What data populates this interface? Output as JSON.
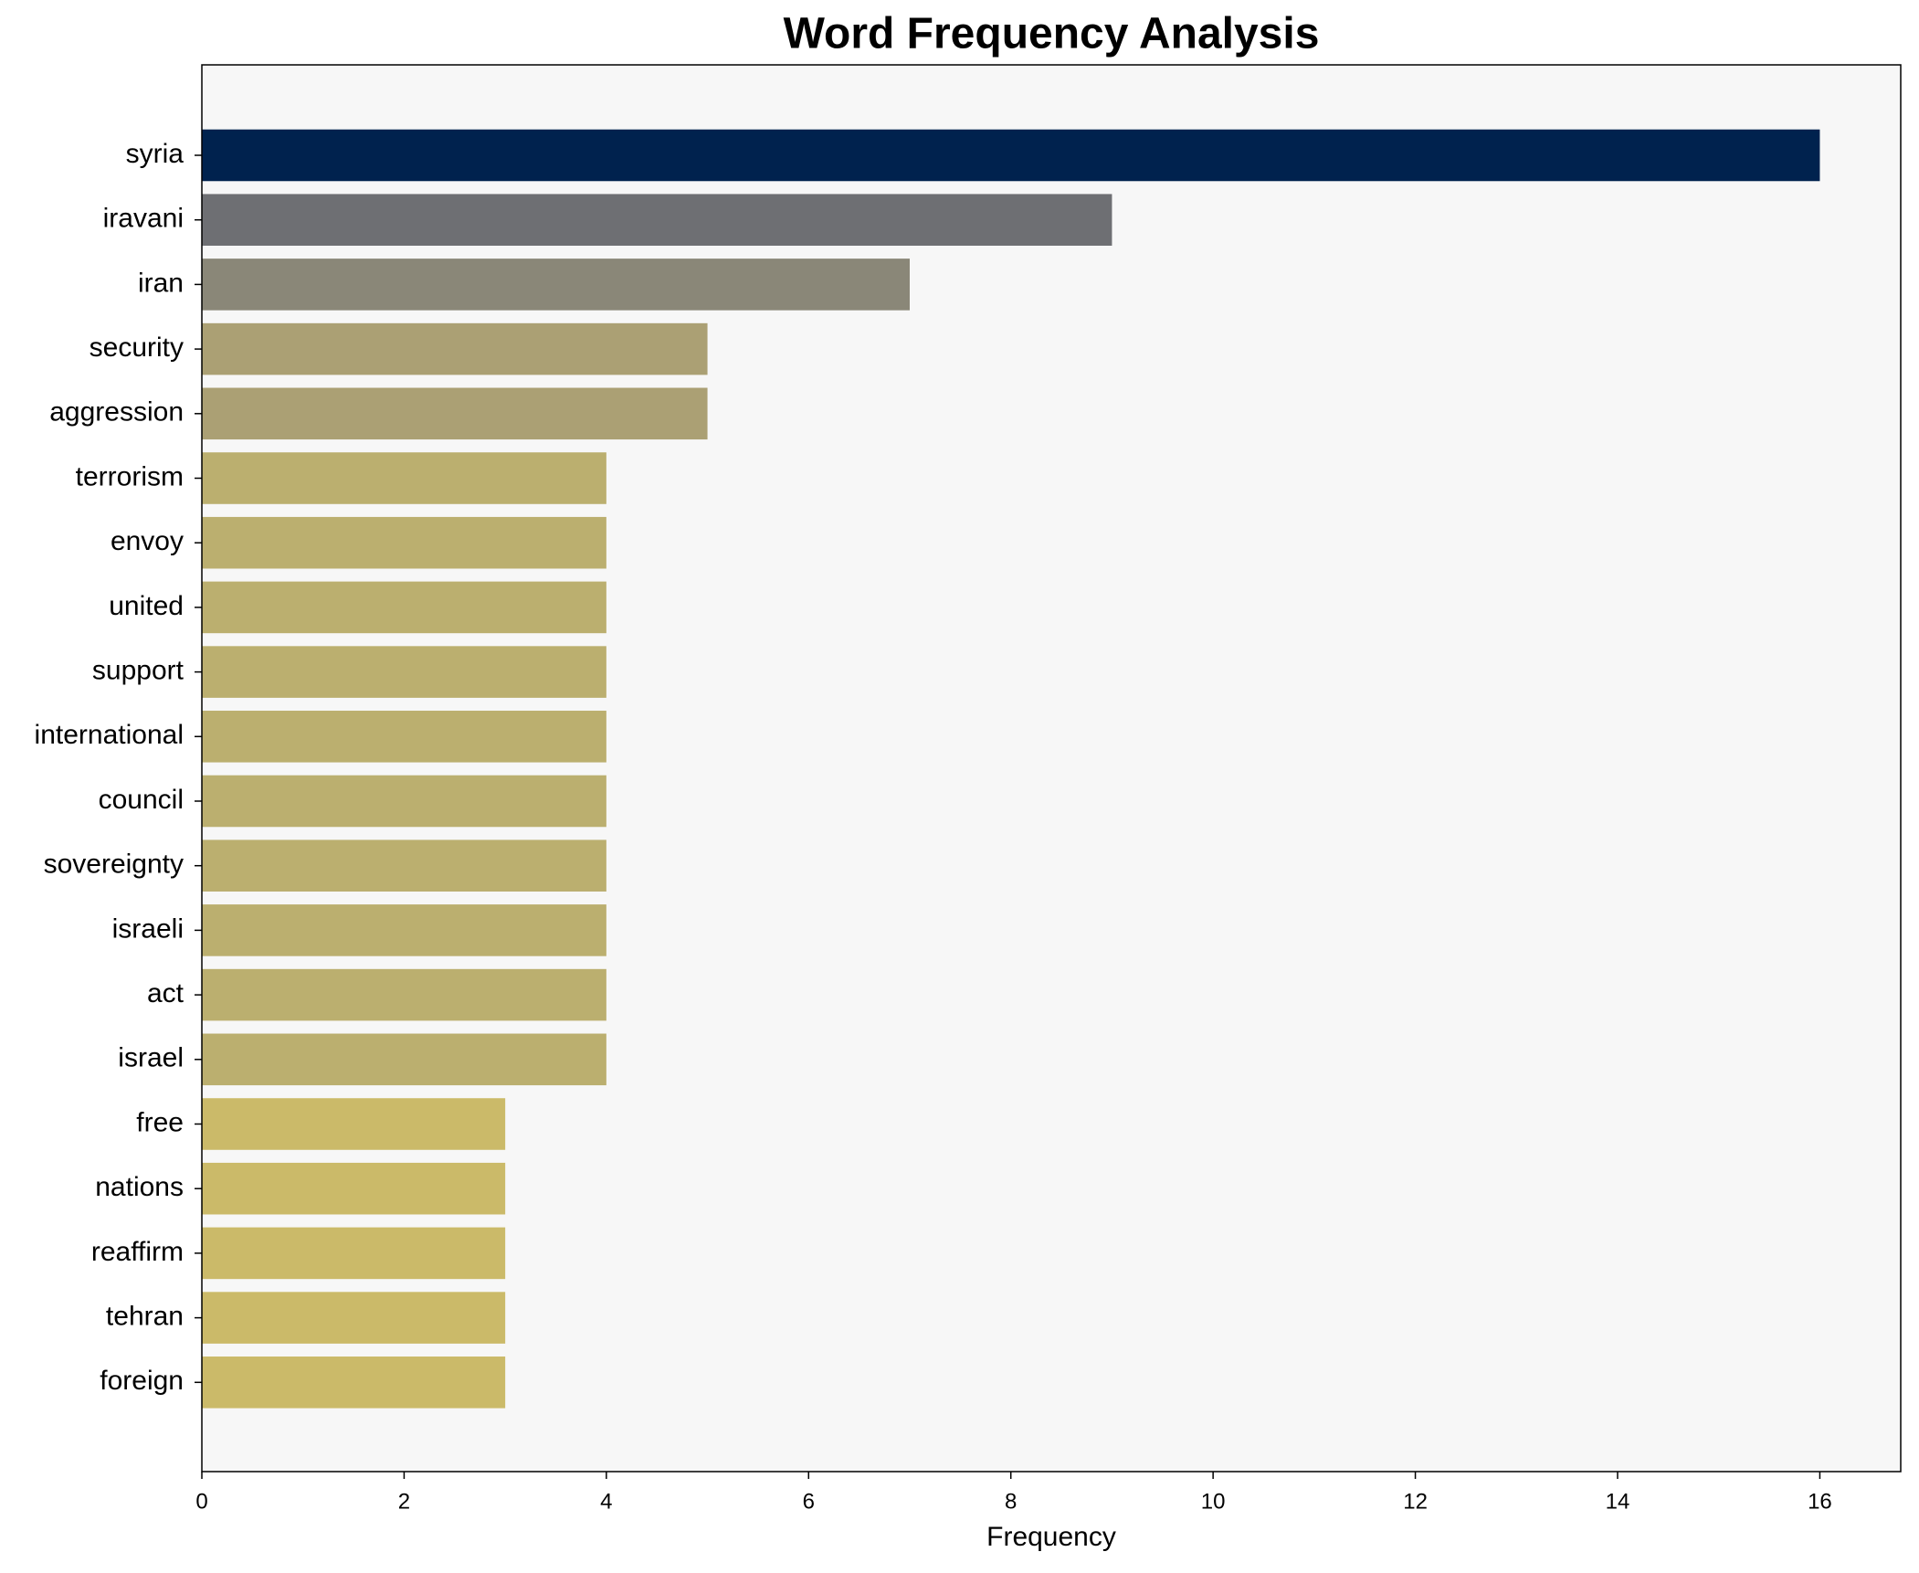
{
  "chart_data": {
    "type": "bar",
    "orientation": "horizontal",
    "title": "Word Frequency Analysis",
    "x_label": "Frequency",
    "categories": [
      "syria",
      "iravani",
      "iran",
      "security",
      "aggression",
      "terrorism",
      "envoy",
      "united",
      "support",
      "international",
      "council",
      "sovereignty",
      "israeli",
      "act",
      "israel",
      "free",
      "nations",
      "reaffirm",
      "tehran",
      "foreign"
    ],
    "values": [
      16,
      9,
      7,
      5,
      5,
      4,
      4,
      4,
      4,
      4,
      4,
      4,
      4,
      4,
      4,
      3,
      3,
      3,
      3,
      3
    ],
    "colors": [
      "#00224e",
      "#6e6f73",
      "#8a8778",
      "#aba074",
      "#aba074",
      "#bbaf6f",
      "#bbaf6f",
      "#bbaf6f",
      "#bbaf6f",
      "#bbaf6f",
      "#bbaf6f",
      "#bbaf6f",
      "#bbaf6f",
      "#bbaf6f",
      "#bbaf6f",
      "#cbba69",
      "#cbba69",
      "#cbba69",
      "#cbba69",
      "#cbba69"
    ],
    "xlim": [
      0,
      16.8
    ],
    "xticks": [
      0,
      2,
      4,
      6,
      8,
      10,
      12,
      14,
      16
    ],
    "grid": false
  }
}
